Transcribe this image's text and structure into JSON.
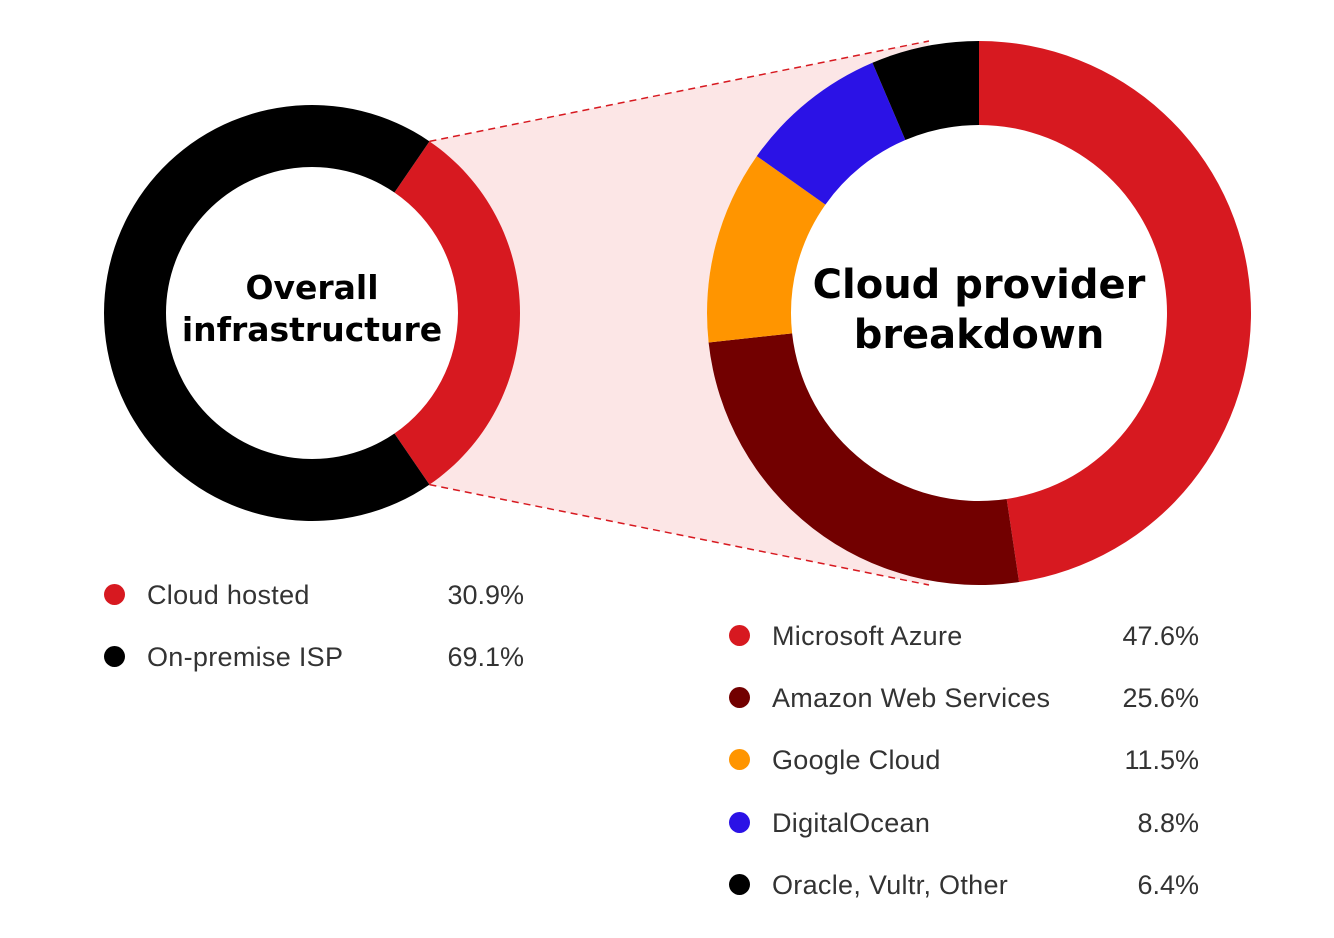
{
  "chart_data": [
    {
      "type": "pie",
      "title": "Overall infrastructure",
      "title_lines": [
        "Overall",
        "infrastructure"
      ],
      "slices": [
        {
          "label": "Cloud hosted",
          "value": 30.9,
          "value_label": "30.9%",
          "color": "#d71920"
        },
        {
          "label": "On-premise ISP",
          "value": 69.1,
          "value_label": "69.1%",
          "color": "#000000"
        }
      ]
    },
    {
      "type": "pie",
      "title": "Cloud provider breakdown",
      "title_lines": [
        "Cloud provider",
        "breakdown"
      ],
      "slices": [
        {
          "label": "Microsoft Azure",
          "value": 47.6,
          "value_label": "47.6%",
          "color": "#d71920"
        },
        {
          "label": "Amazon Web Services",
          "value": 25.6,
          "value_label": "25.6%",
          "color": "#720000"
        },
        {
          "label": "Google Cloud",
          "value": 11.5,
          "value_label": "11.5%",
          "color": "#ff9500"
        },
        {
          "label": "DigitalOcean",
          "value": 8.8,
          "value_label": "8.8%",
          "color": "#2b12e6"
        },
        {
          "label": "Oracle, Vultr, Other",
          "value": 6.4,
          "value_label": "6.4%",
          "color": "#000000"
        }
      ]
    }
  ],
  "colors": {
    "connector_fill": "#fce6e6",
    "connector_line": "#d71920"
  }
}
